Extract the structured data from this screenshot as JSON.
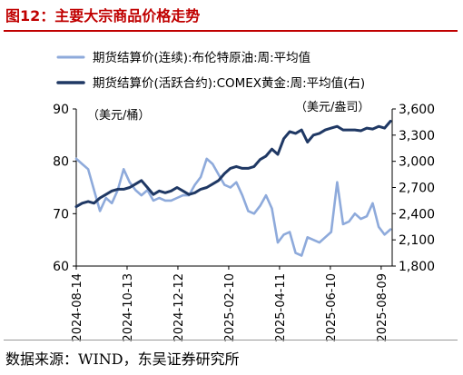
{
  "figure": {
    "title": "图12：主要大宗商品价格走势",
    "source": "数据来源：WIND，东吴证券研究所"
  },
  "chart_data": {
    "type": "line",
    "title": "",
    "legend_position": "top",
    "grid": false,
    "x_ticks": [
      "2024-08-14",
      "2024-10-13",
      "2024-12-12",
      "2025-02-10",
      "2025-04-11",
      "2025-06-10",
      "2025-08-09"
    ],
    "x_range": [
      "2024-08-14",
      "2025-08-22"
    ],
    "left_axis": {
      "unit_label": "（美元/桶）",
      "ticks": [
        60,
        70,
        80,
        90
      ],
      "range": [
        60,
        90
      ]
    },
    "right_axis": {
      "unit_label": "（美元/盎司）",
      "ticks": [
        1800,
        2100,
        2400,
        2700,
        3000,
        3300,
        3600
      ],
      "tick_labels": [
        "1,800",
        "2,100",
        "2,400",
        "2,700",
        "3,000",
        "3,300",
        "3,600"
      ],
      "range": [
        1800,
        3600
      ]
    },
    "series": [
      {
        "name": "期货结算价(连续):布伦特原油:周:平均值",
        "axis": "left",
        "color": "#8eaadb",
        "x": [
          "2024-08-14",
          "2024-08-21",
          "2024-08-28",
          "2024-09-04",
          "2024-09-11",
          "2024-09-18",
          "2024-09-25",
          "2024-10-02",
          "2024-10-09",
          "2024-10-16",
          "2024-10-23",
          "2024-10-30",
          "2024-11-06",
          "2024-11-13",
          "2024-11-20",
          "2024-11-27",
          "2024-12-04",
          "2024-12-11",
          "2024-12-18",
          "2024-12-25",
          "2025-01-01",
          "2025-01-08",
          "2025-01-15",
          "2025-01-22",
          "2025-01-29",
          "2025-02-05",
          "2025-02-12",
          "2025-02-19",
          "2025-02-26",
          "2025-03-05",
          "2025-03-12",
          "2025-03-19",
          "2025-03-26",
          "2025-04-02",
          "2025-04-09",
          "2025-04-16",
          "2025-04-23",
          "2025-04-30",
          "2025-05-07",
          "2025-05-14",
          "2025-05-21",
          "2025-05-28",
          "2025-06-04",
          "2025-06-11",
          "2025-06-18",
          "2025-06-25",
          "2025-07-02",
          "2025-07-09",
          "2025-07-16",
          "2025-07-23",
          "2025-07-30",
          "2025-08-06",
          "2025-08-13",
          "2025-08-20"
        ],
        "values": [
          80.5,
          79.5,
          78.5,
          74.5,
          70.5,
          73.0,
          72.0,
          74.5,
          78.5,
          76.0,
          74.5,
          73.5,
          74.5,
          72.5,
          73.0,
          72.5,
          72.5,
          73.0,
          73.5,
          73.5,
          75.5,
          77.0,
          80.5,
          79.5,
          77.5,
          75.5,
          75.0,
          76.0,
          73.5,
          70.5,
          70.0,
          71.5,
          73.5,
          71.0,
          64.5,
          66.0,
          66.5,
          62.5,
          62.0,
          65.5,
          65.0,
          64.5,
          65.5,
          66.5,
          76.0,
          68.0,
          68.5,
          70.0,
          69.0,
          69.5,
          72.0,
          67.5,
          66.0,
          67.0
        ]
      },
      {
        "name": "期货结算价(活跃合约):COMEX黄金:周:平均值(右)",
        "axis": "right",
        "color": "#1f3864",
        "x": [
          "2024-08-14",
          "2024-08-21",
          "2024-08-28",
          "2024-09-04",
          "2024-09-11",
          "2024-09-18",
          "2024-09-25",
          "2024-10-02",
          "2024-10-09",
          "2024-10-16",
          "2024-10-23",
          "2024-10-30",
          "2024-11-06",
          "2024-11-13",
          "2024-11-20",
          "2024-11-27",
          "2024-12-04",
          "2024-12-11",
          "2024-12-18",
          "2024-12-25",
          "2025-01-01",
          "2025-01-08",
          "2025-01-15",
          "2025-01-22",
          "2025-01-29",
          "2025-02-05",
          "2025-02-12",
          "2025-02-19",
          "2025-02-26",
          "2025-03-05",
          "2025-03-12",
          "2025-03-19",
          "2025-03-26",
          "2025-04-02",
          "2025-04-09",
          "2025-04-16",
          "2025-04-23",
          "2025-04-30",
          "2025-05-07",
          "2025-05-14",
          "2025-05-21",
          "2025-05-28",
          "2025-06-04",
          "2025-06-11",
          "2025-06-18",
          "2025-06-25",
          "2025-07-02",
          "2025-07-09",
          "2025-07-16",
          "2025-07-23",
          "2025-07-30",
          "2025-08-06",
          "2025-08-13",
          "2025-08-20"
        ],
        "values": [
          2480,
          2520,
          2540,
          2520,
          2580,
          2620,
          2660,
          2680,
          2680,
          2700,
          2740,
          2780,
          2700,
          2620,
          2660,
          2640,
          2660,
          2700,
          2660,
          2620,
          2640,
          2680,
          2700,
          2740,
          2780,
          2860,
          2920,
          2940,
          2920,
          2920,
          2940,
          3020,
          3060,
          3140,
          3080,
          3260,
          3340,
          3320,
          3360,
          3220,
          3300,
          3320,
          3360,
          3380,
          3400,
          3360,
          3360,
          3360,
          3350,
          3380,
          3370,
          3400,
          3380,
          3460
        ]
      }
    ]
  }
}
